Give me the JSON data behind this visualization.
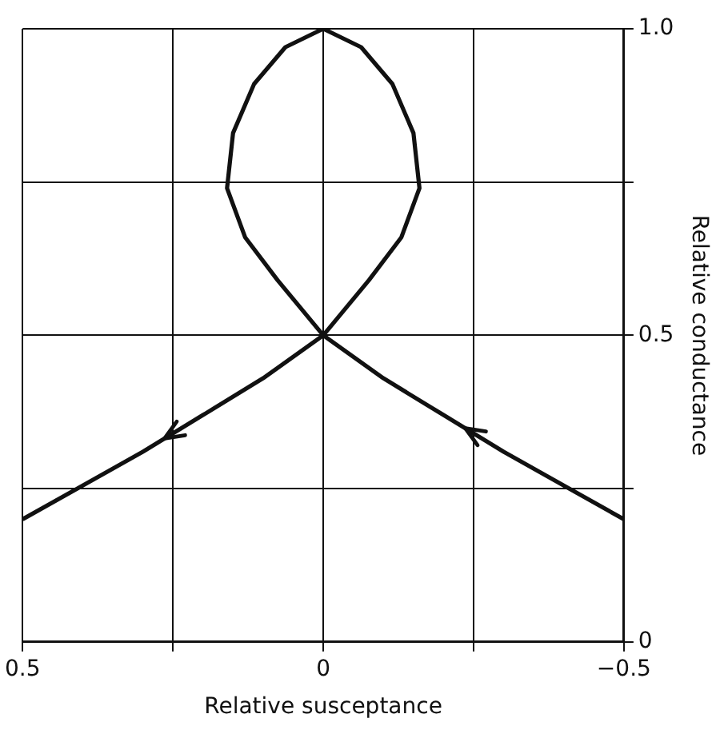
{
  "chart_data": {
    "type": "line",
    "xlabel": "Relative susceptance",
    "ylabel": "Relative conductance",
    "xlim": [
      0.5,
      -0.5
    ],
    "xticks": [
      0.5,
      {
        "value": 0.25,
        "label": null
      },
      0,
      {
        "value": -0.25,
        "label": null
      },
      {
        "value": -0.5,
        "label": "−0.5"
      }
    ],
    "ylim": [
      0,
      1
    ],
    "yticks": [
      0,
      {
        "value": 0.25,
        "label": null
      },
      0.5,
      {
        "value": 0.75,
        "label": null
      },
      {
        "value": 1,
        "label": "1.0"
      }
    ],
    "grid": true,
    "legend": false,
    "marker": "none",
    "line_style": "solid",
    "series": [
      {
        "color": "#111111",
        "x": [
          -0.5,
          -0.4,
          -0.3,
          -0.2,
          -0.1,
          0,
          0.076,
          0.13,
          0.16,
          0.15,
          0.115,
          0.063,
          0,
          -0.063,
          -0.115,
          -0.15,
          -0.16,
          -0.13,
          -0.076,
          0,
          0.1,
          0.2,
          0.3,
          0.4,
          0.5
        ],
        "values": [
          0.2,
          0.255,
          0.31,
          0.37,
          0.43,
          0.5,
          0.59,
          0.66,
          0.74,
          0.83,
          0.91,
          0.97,
          1.0,
          0.97,
          0.91,
          0.83,
          0.74,
          0.66,
          0.59,
          0.5,
          0.43,
          0.37,
          0.31,
          0.255,
          0.2
        ]
      }
    ]
  }
}
